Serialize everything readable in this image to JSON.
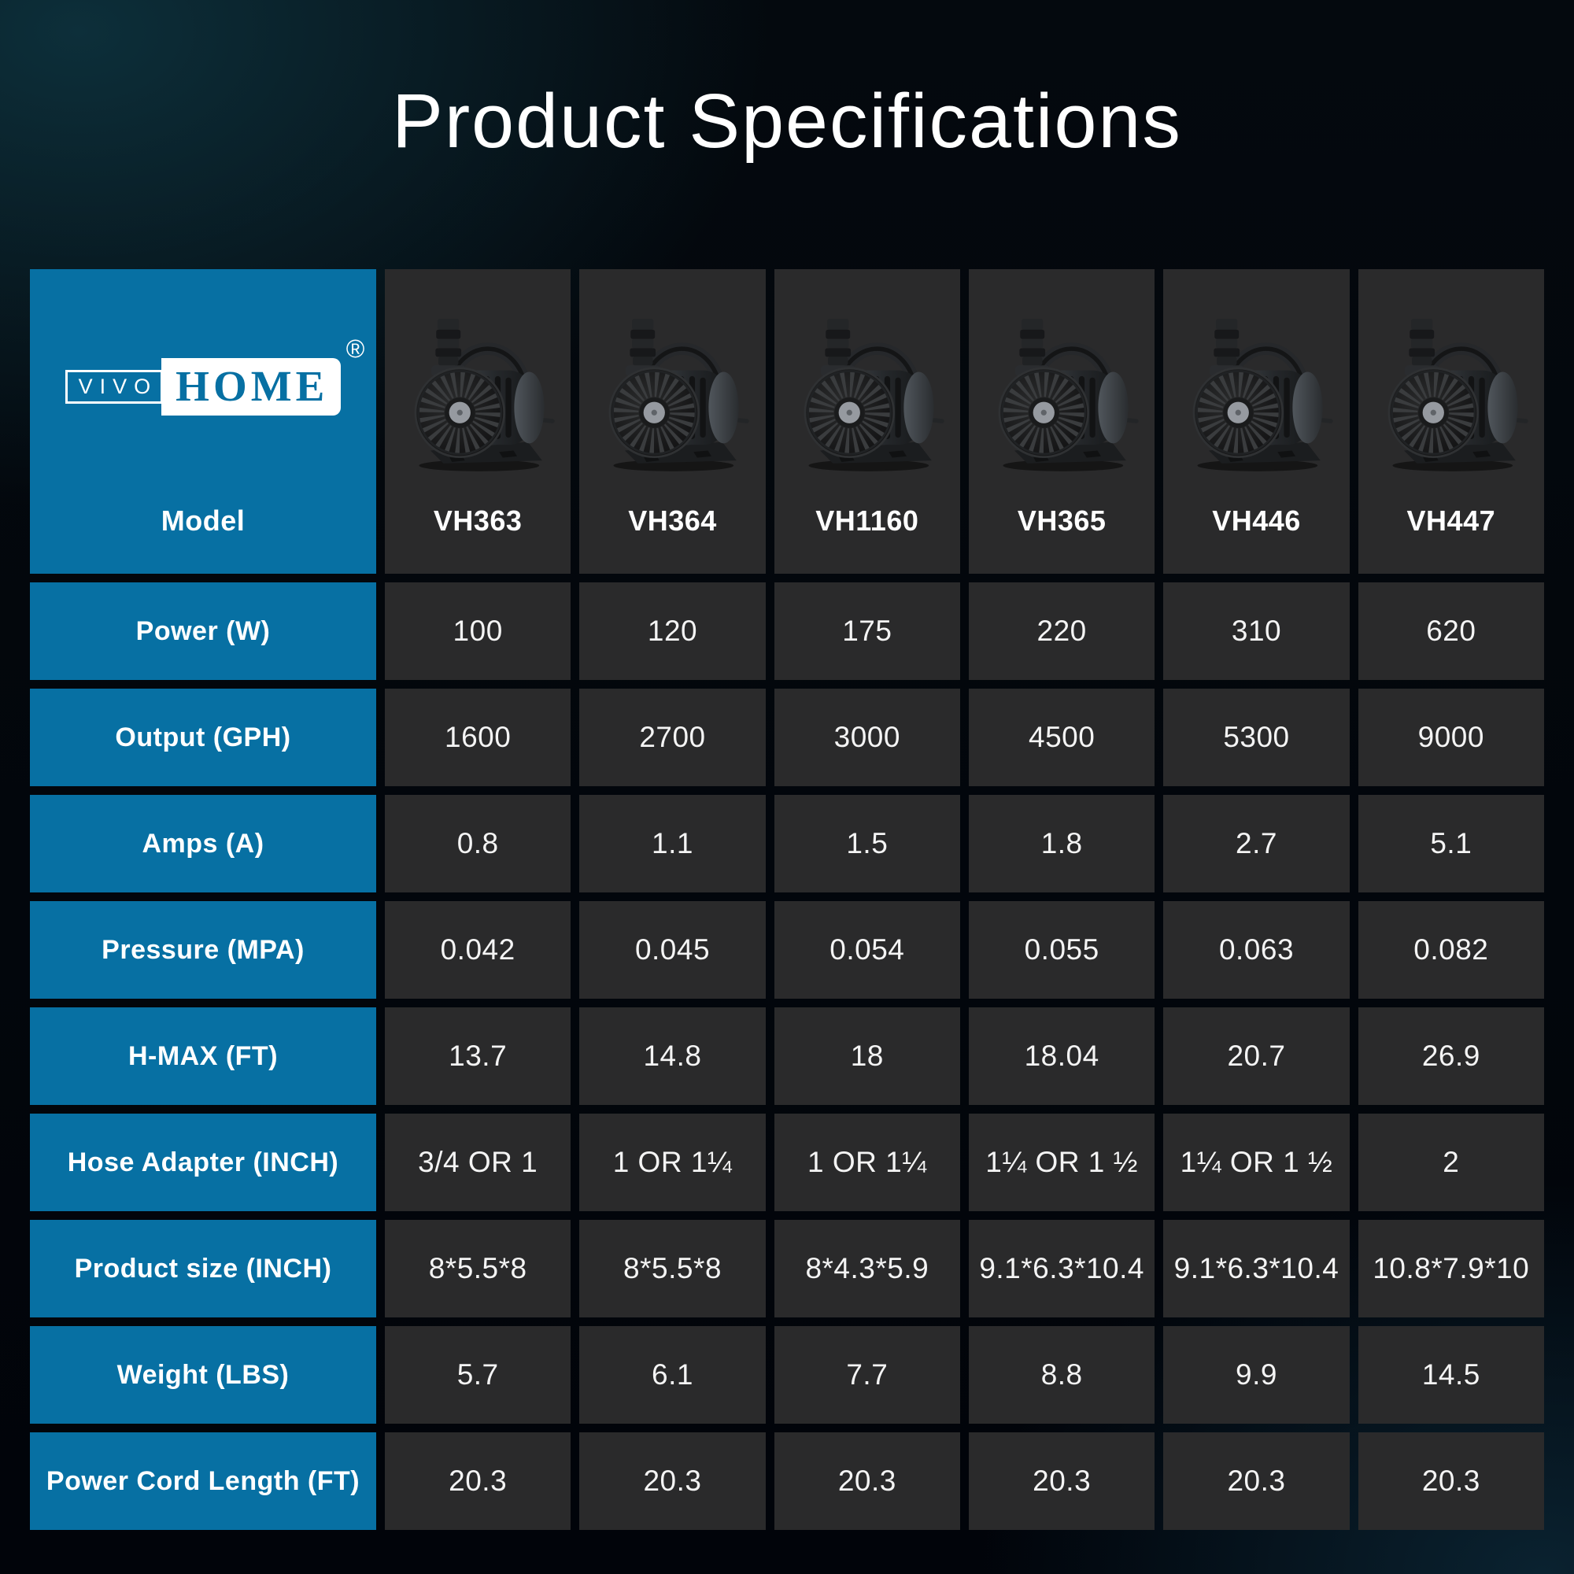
{
  "title": "Product Specifications",
  "brand": {
    "logo_left": "VIVO",
    "logo_right": "HOME",
    "registered": "®"
  },
  "colors": {
    "accent_blue": "#0770a3",
    "cell_dark": "#2a2a2b",
    "background_teal": "#0d2f3a",
    "text": "#ffffff"
  },
  "icons": {
    "pump_image": "pump-photo-icon",
    "registered_mark": "registered-trademark-icon"
  },
  "table": {
    "model_label": "Model",
    "models": [
      "VH363",
      "VH364",
      "VH1160",
      "VH365",
      "VH446",
      "VH447"
    ],
    "rows": [
      {
        "label": "Power (W)",
        "values": [
          "100",
          "120",
          "175",
          "220",
          "310",
          "620"
        ]
      },
      {
        "label": "Output (GPH)",
        "values": [
          "1600",
          "2700",
          "3000",
          "4500",
          "5300",
          "9000"
        ]
      },
      {
        "label": "Amps (A)",
        "values": [
          "0.8",
          "1.1",
          "1.5",
          "1.8",
          "2.7",
          "5.1"
        ]
      },
      {
        "label": "Pressure (MPA)",
        "values": [
          "0.042",
          "0.045",
          "0.054",
          "0.055",
          "0.063",
          "0.082"
        ]
      },
      {
        "label": "H-MAX (FT)",
        "values": [
          "13.7",
          "14.8",
          "18",
          "18.04",
          "20.7",
          "26.9"
        ]
      },
      {
        "label": "Hose Adapter (INCH)",
        "values": [
          "3/4 OR 1",
          "1 OR 1¼",
          "1 OR 1¼",
          "1¼ OR 1 ½",
          "1¼ OR 1 ½",
          "2"
        ]
      },
      {
        "label": "Product size (INCH)",
        "values": [
          "8*5.5*8",
          "8*5.5*8",
          "8*4.3*5.9",
          "9.1*6.3*10.4",
          "9.1*6.3*10.4",
          "10.8*7.9*10"
        ]
      },
      {
        "label": "Weight (LBS)",
        "values": [
          "5.7",
          "6.1",
          "7.7",
          "8.8",
          "9.9",
          "14.5"
        ]
      },
      {
        "label": "Power Cord Length (FT)",
        "values": [
          "20.3",
          "20.3",
          "20.3",
          "20.3",
          "20.3",
          "20.3"
        ]
      }
    ]
  }
}
